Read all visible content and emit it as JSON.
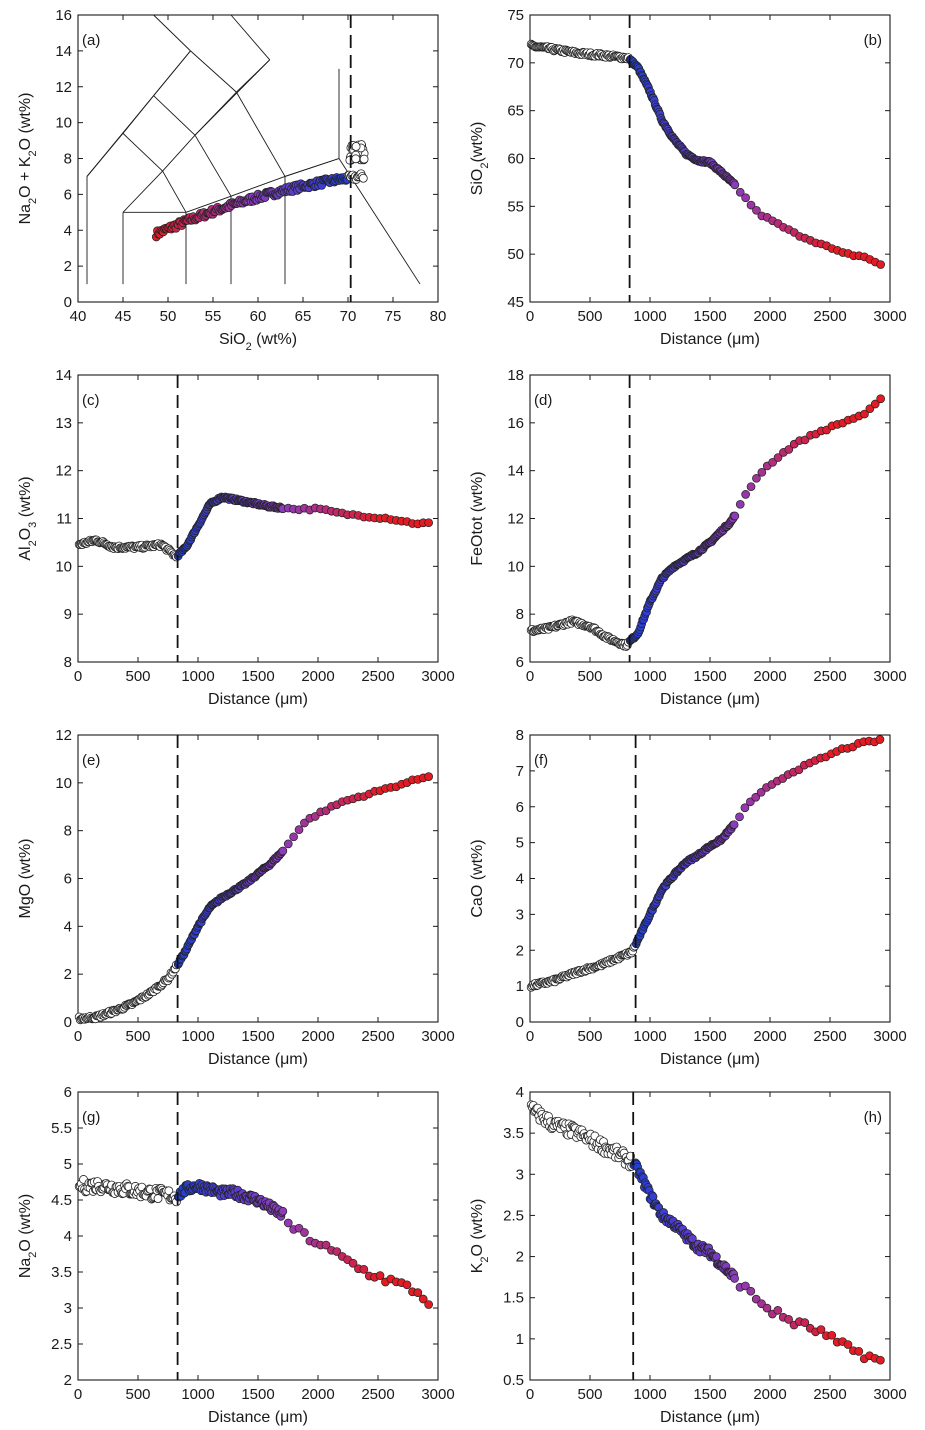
{
  "colors": {
    "residual_melt": "#ffffff",
    "blue_end": "#1f3fd6",
    "purple_mid": "#8a3bc0",
    "red_end": "#e51b24",
    "dashed_line": "#111111"
  },
  "chart_data": [
    {
      "id": "a",
      "panel_label": "(a)",
      "type": "scatter",
      "xlabel": "SiO₂ (wt%)",
      "ylabel": "Na₂O + K₂O (wt%)",
      "xlim": [
        40,
        80
      ],
      "ylim": [
        0,
        16
      ],
      "xticks": [
        40,
        45,
        50,
        55,
        60,
        65,
        70,
        75,
        80
      ],
      "yticks": [
        0,
        2,
        4,
        6,
        8,
        10,
        12,
        14,
        16
      ],
      "dashed_x": 70.3,
      "label_position": "top-left",
      "tas_classification_lines": true,
      "points": "SiO2 vs Na2O+K2O trend from 48.7 to 71.7 wt% SiO2"
    },
    {
      "id": "b",
      "panel_label": "(b)",
      "type": "scatter",
      "xlabel": "Distance (μm)",
      "ylabel": "SiO₂(wt%)",
      "xlim": [
        0,
        3000
      ],
      "ylim": [
        45,
        75
      ],
      "xticks": [
        0,
        500,
        1000,
        1500,
        2000,
        2500,
        3000
      ],
      "yticks": [
        45,
        50,
        55,
        60,
        65,
        70,
        75
      ],
      "dashed_x": 830,
      "label_position": "top-right",
      "profile": [
        [
          0,
          71.8
        ],
        [
          200,
          71.4
        ],
        [
          400,
          71.0
        ],
        [
          600,
          70.8
        ],
        [
          820,
          70.5
        ],
        [
          900,
          69.5
        ],
        [
          1000,
          67
        ],
        [
          1100,
          64
        ],
        [
          1200,
          62
        ],
        [
          1300,
          60.5
        ],
        [
          1400,
          59.8
        ],
        [
          1500,
          59.6
        ],
        [
          1600,
          58.5
        ],
        [
          1700,
          57.3
        ],
        [
          1800,
          55.8
        ],
        [
          1900,
          54.3
        ],
        [
          2000,
          53.6
        ],
        [
          2200,
          52.2
        ],
        [
          2400,
          51.2
        ],
        [
          2600,
          50.1
        ],
        [
          2800,
          49.7
        ],
        [
          2930,
          48.8
        ]
      ]
    },
    {
      "id": "c",
      "panel_label": "(c)",
      "type": "scatter",
      "xlabel": "Distance (μm)",
      "ylabel": "Al₂O₃ (wt%)",
      "xlim": [
        0,
        3000
      ],
      "ylim": [
        8,
        14
      ],
      "xticks": [
        0,
        500,
        1000,
        1500,
        2000,
        2500,
        3000
      ],
      "yticks": [
        8,
        9,
        10,
        11,
        12,
        13,
        14
      ],
      "dashed_x": 830,
      "label_position": "top-left",
      "profile": [
        [
          0,
          10.45
        ],
        [
          150,
          10.55
        ],
        [
          300,
          10.4
        ],
        [
          500,
          10.4
        ],
        [
          700,
          10.45
        ],
        [
          820,
          10.2
        ],
        [
          900,
          10.4
        ],
        [
          1000,
          10.85
        ],
        [
          1100,
          11.3
        ],
        [
          1200,
          11.45
        ],
        [
          1300,
          11.4
        ],
        [
          1400,
          11.35
        ],
        [
          1500,
          11.3
        ],
        [
          1600,
          11.25
        ],
        [
          1800,
          11.2
        ],
        [
          2000,
          11.2
        ],
        [
          2200,
          11.1
        ],
        [
          2400,
          11.05
        ],
        [
          2600,
          11.0
        ],
        [
          2800,
          10.9
        ],
        [
          2950,
          10.9
        ]
      ]
    },
    {
      "id": "d",
      "panel_label": "(d)",
      "type": "scatter",
      "xlabel": "Distance (μm)",
      "ylabel": "FeOtot (wt%)",
      "xlim": [
        0,
        3000
      ],
      "ylim": [
        6,
        18
      ],
      "xticks": [
        0,
        500,
        1000,
        1500,
        2000,
        2500,
        3000
      ],
      "yticks": [
        6,
        8,
        10,
        12,
        14,
        16,
        18
      ],
      "dashed_x": 830,
      "label_position": "top-left",
      "profile": [
        [
          0,
          7.3
        ],
        [
          150,
          7.4
        ],
        [
          350,
          7.7
        ],
        [
          500,
          7.5
        ],
        [
          650,
          7.0
        ],
        [
          800,
          6.7
        ],
        [
          900,
          7.2
        ],
        [
          1000,
          8.5
        ],
        [
          1100,
          9.5
        ],
        [
          1200,
          10.0
        ],
        [
          1300,
          10.3
        ],
        [
          1400,
          10.6
        ],
        [
          1500,
          11.0
        ],
        [
          1600,
          11.5
        ],
        [
          1680,
          11.9
        ],
        [
          1800,
          13.0
        ],
        [
          1900,
          13.8
        ],
        [
          2000,
          14.3
        ],
        [
          2200,
          15.1
        ],
        [
          2400,
          15.6
        ],
        [
          2600,
          16.0
        ],
        [
          2800,
          16.4
        ],
        [
          2930,
          17.0
        ]
      ]
    },
    {
      "id": "e",
      "panel_label": "(e)",
      "type": "scatter",
      "xlabel": "Distance (μm)",
      "ylabel": "MgO (wt%)",
      "xlim": [
        0,
        3000
      ],
      "ylim": [
        0,
        12
      ],
      "xticks": [
        0,
        500,
        1000,
        1500,
        2000,
        2500,
        3000
      ],
      "yticks": [
        0,
        2,
        4,
        6,
        8,
        10,
        12
      ],
      "dashed_x": 830,
      "label_position": "top-left",
      "profile": [
        [
          0,
          0.15
        ],
        [
          150,
          0.2
        ],
        [
          300,
          0.45
        ],
        [
          450,
          0.75
        ],
        [
          600,
          1.2
        ],
        [
          750,
          1.8
        ],
        [
          830,
          2.4
        ],
        [
          900,
          3.0
        ],
        [
          1000,
          4.0
        ],
        [
          1100,
          4.8
        ],
        [
          1200,
          5.2
        ],
        [
          1300,
          5.5
        ],
        [
          1400,
          5.8
        ],
        [
          1500,
          6.2
        ],
        [
          1600,
          6.6
        ],
        [
          1700,
          7.1
        ],
        [
          1800,
          7.8
        ],
        [
          1900,
          8.4
        ],
        [
          2000,
          8.7
        ],
        [
          2200,
          9.2
        ],
        [
          2400,
          9.5
        ],
        [
          2600,
          9.8
        ],
        [
          2800,
          10.1
        ],
        [
          2930,
          10.3
        ]
      ]
    },
    {
      "id": "f",
      "panel_label": "(f)",
      "type": "scatter",
      "xlabel": "Distance (μm)",
      "ylabel": "CaO (wt%)",
      "xlim": [
        0,
        3000
      ],
      "ylim": [
        0,
        8
      ],
      "xticks": [
        0,
        500,
        1000,
        1500,
        2000,
        2500,
        3000
      ],
      "yticks": [
        0,
        1,
        2,
        3,
        4,
        5,
        6,
        7,
        8
      ],
      "dashed_x": 880,
      "label_position": "top-left",
      "profile": [
        [
          0,
          1.0
        ],
        [
          200,
          1.15
        ],
        [
          400,
          1.4
        ],
        [
          600,
          1.6
        ],
        [
          850,
          1.95
        ],
        [
          900,
          2.3
        ],
        [
          1000,
          3.0
        ],
        [
          1100,
          3.7
        ],
        [
          1200,
          4.1
        ],
        [
          1300,
          4.45
        ],
        [
          1400,
          4.65
        ],
        [
          1500,
          4.9
        ],
        [
          1600,
          5.1
        ],
        [
          1700,
          5.5
        ],
        [
          1800,
          6.0
        ],
        [
          1900,
          6.3
        ],
        [
          2000,
          6.6
        ],
        [
          2200,
          7.0
        ],
        [
          2400,
          7.3
        ],
        [
          2600,
          7.6
        ],
        [
          2800,
          7.8
        ],
        [
          2930,
          7.85
        ]
      ]
    },
    {
      "id": "g",
      "panel_label": "(g)",
      "type": "scatter",
      "xlabel": "Distance (μm)",
      "ylabel": "Na₂O (wt%)",
      "xlim": [
        0,
        3000
      ],
      "ylim": [
        2,
        6
      ],
      "xticks": [
        0,
        500,
        1000,
        1500,
        2000,
        2500,
        3000
      ],
      "yticks": [
        2,
        2.5,
        3,
        3.5,
        4,
        4.5,
        5,
        5.5,
        6
      ],
      "dashed_x": 830,
      "label_position": "top-left",
      "profile": [
        [
          0,
          4.7
        ],
        [
          200,
          4.7
        ],
        [
          400,
          4.65
        ],
        [
          600,
          4.6
        ],
        [
          820,
          4.55
        ],
        [
          900,
          4.65
        ],
        [
          1000,
          4.7
        ],
        [
          1100,
          4.65
        ],
        [
          1200,
          4.6
        ],
        [
          1300,
          4.6
        ],
        [
          1400,
          4.55
        ],
        [
          1500,
          4.5
        ],
        [
          1600,
          4.4
        ],
        [
          1700,
          4.3
        ],
        [
          1800,
          4.1
        ],
        [
          2000,
          3.9
        ],
        [
          2200,
          3.7
        ],
        [
          2400,
          3.5
        ],
        [
          2600,
          3.38
        ],
        [
          2800,
          3.25
        ],
        [
          2950,
          3.05
        ]
      ]
    },
    {
      "id": "h",
      "panel_label": "(h)",
      "type": "scatter",
      "xlabel": "Distance (μm)",
      "ylabel": "K₂O (wt%)",
      "xlim": [
        0,
        3000
      ],
      "ylim": [
        0.5,
        4
      ],
      "xticks": [
        0,
        500,
        1000,
        1500,
        2000,
        2500,
        3000
      ],
      "yticks": [
        0.5,
        1,
        1.5,
        2,
        2.5,
        3,
        3.5,
        4
      ],
      "dashed_x": 860,
      "label_position": "top-right",
      "profile": [
        [
          0,
          3.8
        ],
        [
          200,
          3.6
        ],
        [
          400,
          3.5
        ],
        [
          600,
          3.35
        ],
        [
          850,
          3.15
        ],
        [
          900,
          3.05
        ],
        [
          1000,
          2.75
        ],
        [
          1100,
          2.5
        ],
        [
          1200,
          2.4
        ],
        [
          1300,
          2.25
        ],
        [
          1400,
          2.12
        ],
        [
          1500,
          2.05
        ],
        [
          1600,
          1.9
        ],
        [
          1700,
          1.75
        ],
        [
          1800,
          1.6
        ],
        [
          2000,
          1.35
        ],
        [
          2200,
          1.2
        ],
        [
          2400,
          1.1
        ],
        [
          2600,
          0.92
        ],
        [
          2800,
          0.8
        ],
        [
          2930,
          0.72
        ]
      ]
    }
  ]
}
